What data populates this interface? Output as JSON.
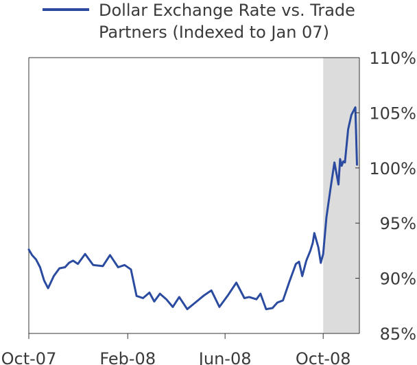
{
  "chart_data": {
    "type": "line",
    "legend": {
      "label": "Dollar Exchange Rate vs. Trade Partners (Indexed to Jan 07)",
      "placement": "top",
      "lines": [
        "Dollar Exchange Rate vs. Trade",
        "Partners (Indexed to Jan 07)"
      ]
    },
    "series": [
      {
        "name": "Dollar Exchange Rate vs. Trade Partners (Indexed to Jan 07)",
        "color": "#2b4ba0",
        "x": [
          "2007-10-01",
          "2007-10-05",
          "2007-10-10",
          "2007-10-15",
          "2007-10-20",
          "2007-10-25",
          "2007-11-01",
          "2007-11-08",
          "2007-11-15",
          "2007-11-20",
          "2007-11-25",
          "2007-12-01",
          "2007-12-10",
          "2007-12-20",
          "2008-01-01",
          "2008-01-10",
          "2008-01-20",
          "2008-01-28",
          "2008-02-05",
          "2008-02-12",
          "2008-02-20",
          "2008-02-28",
          "2008-03-05",
          "2008-03-12",
          "2008-03-20",
          "2008-03-28",
          "2008-04-05",
          "2008-04-15",
          "2008-04-25",
          "2008-05-05",
          "2008-05-15",
          "2008-05-25",
          "2008-06-05",
          "2008-06-15",
          "2008-06-25",
          "2008-07-01",
          "2008-07-10",
          "2008-07-15",
          "2008-07-22",
          "2008-07-30",
          "2008-08-05",
          "2008-08-12",
          "2008-08-20",
          "2008-08-28",
          "2008-09-01",
          "2008-09-05",
          "2008-09-10",
          "2008-09-15",
          "2008-09-18",
          "2008-09-20",
          "2008-09-25",
          "2008-09-28",
          "2008-10-01",
          "2008-10-05",
          "2008-10-10",
          "2008-10-15",
          "2008-10-18",
          "2008-10-20",
          "2008-10-22",
          "2008-10-24",
          "2008-10-26",
          "2008-10-28",
          "2008-11-01",
          "2008-11-05",
          "2008-11-10",
          "2008-11-12"
        ],
        "y": [
          92.6,
          92.1,
          91.7,
          91.0,
          89.8,
          89.1,
          90.2,
          90.9,
          91.0,
          91.4,
          91.6,
          91.3,
          92.2,
          91.2,
          91.1,
          92.1,
          91.0,
          91.2,
          90.8,
          88.4,
          88.2,
          88.7,
          87.9,
          88.6,
          88.1,
          87.4,
          88.3,
          87.2,
          87.8,
          88.4,
          88.9,
          87.4,
          88.5,
          89.6,
          88.2,
          88.3,
          88.1,
          88.6,
          87.2,
          87.3,
          87.8,
          88.0,
          89.7,
          91.3,
          91.5,
          90.2,
          91.6,
          92.5,
          93.2,
          94.1,
          92.8,
          91.4,
          92.2,
          95.5,
          98.1,
          100.5,
          99.3,
          98.5,
          100.8,
          100.2,
          100.6,
          100.5,
          103.5,
          104.8,
          105.5,
          100.3
        ]
      }
    ],
    "xaxis": {
      "ticks": [
        "Oct-07",
        "Feb-08",
        "Jun-08",
        "Oct-08"
      ],
      "tick_dates": [
        "2007-10-01",
        "2008-02-01",
        "2008-06-01",
        "2008-10-01"
      ],
      "range": [
        "2007-10-01",
        "2008-11-15"
      ]
    },
    "yaxis": {
      "ticks": [
        "85%",
        "90%",
        "95%",
        "100%",
        "105%",
        "110%"
      ],
      "tick_values": [
        85,
        90,
        95,
        100,
        105,
        110
      ],
      "range": [
        85,
        110
      ],
      "position": "right"
    },
    "shaded_region": {
      "start": "2008-10-01",
      "end": "2008-11-15",
      "color": "#dcdcdc"
    },
    "grid": false
  }
}
